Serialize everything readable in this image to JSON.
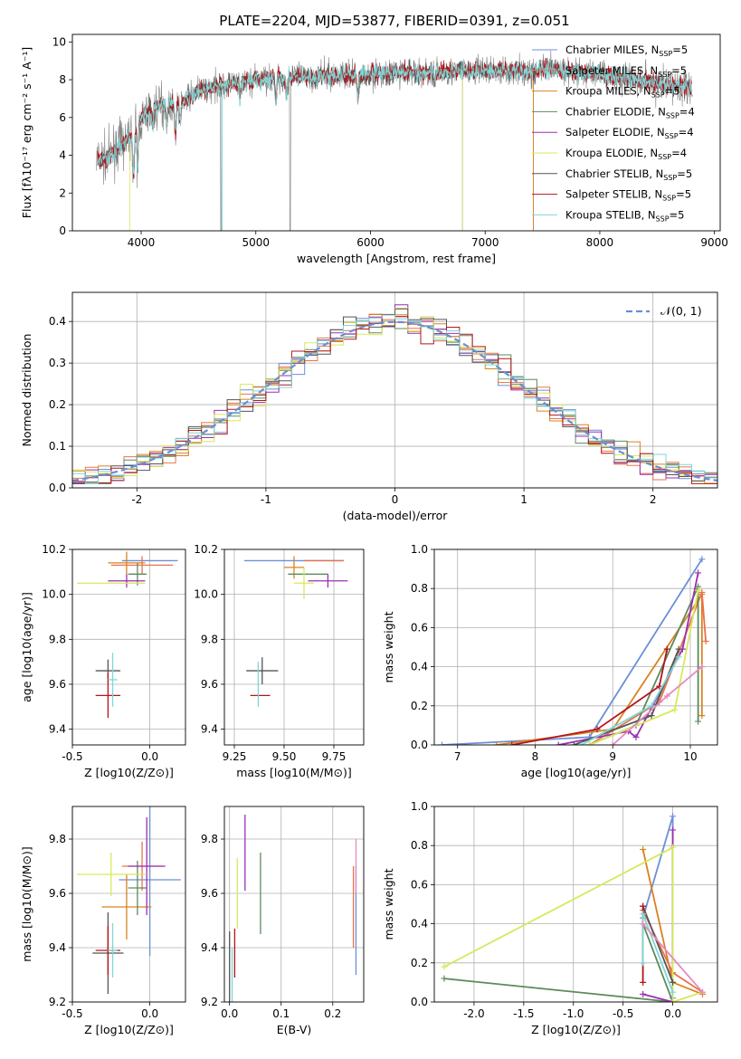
{
  "figure": {
    "title": "PLATE=2204, MJD=53877, FIBERID=0391, z=0.051"
  },
  "colors": {
    "Chabrier MILES": "#6c8fd6",
    "Salpeter MILES": "#e8734c",
    "Kroupa MILES": "#d9821f",
    "Chabrier ELODIE": "#5c8a5c",
    "Salpeter ELODIE": "#9a2fb5",
    "Kroupa ELODIE": "#d8e85a",
    "Chabrier STELIB": "#555555",
    "Salpeter STELIB": "#b3141c",
    "Kroupa STELIB": "#7fd6d6",
    "data": "#808080",
    "gaussian": "#6a8fd0",
    "pink": "#e58ac0"
  },
  "chart_data": [
    {
      "id": "spectrum",
      "type": "line",
      "xlabel": "wavelength [Angstrom, rest frame]",
      "ylabel": "Flux [fλ10⁻¹⁷ erg cm⁻² s⁻¹ A⁻¹]",
      "xlim": [
        3400,
        9050
      ],
      "ylim": [
        0,
        10.4
      ],
      "xticks": [
        4000,
        5000,
        6000,
        7000,
        8000,
        9000
      ],
      "yticks": [
        0,
        2,
        4,
        6,
        8,
        10
      ],
      "legend_position": "top-right",
      "legend": [
        {
          "imf": "Chabrier",
          "lib": "MILES",
          "n": "5"
        },
        {
          "imf": "Salpeter",
          "lib": "MILES",
          "n": "5"
        },
        {
          "imf": "Kroupa",
          "lib": "MILES",
          "n": "5"
        },
        {
          "imf": "Chabrier",
          "lib": "ELODIE",
          "n": "4"
        },
        {
          "imf": "Salpeter",
          "lib": "ELODIE",
          "n": "4"
        },
        {
          "imf": "Kroupa",
          "lib": "ELODIE",
          "n": "4"
        },
        {
          "imf": "Chabrier",
          "lib": "STELIB",
          "n": "5"
        },
        {
          "imf": "Salpeter",
          "lib": "STELIB",
          "n": "5"
        },
        {
          "imf": "Kroupa STELIB",
          "lib": "",
          "n": "5"
        }
      ],
      "continuum": {
        "x": [
          3620,
          3700,
          3800,
          3900,
          4000,
          4100,
          4200,
          4300,
          4400,
          4500,
          4700,
          5000,
          5300,
          5600,
          6000,
          6500,
          7000,
          7400,
          7500,
          8000,
          8500,
          8800
        ],
        "y": [
          3.8,
          3.8,
          4.5,
          4.9,
          5.9,
          6.5,
          6.7,
          6.6,
          7.0,
          7.4,
          7.7,
          8.0,
          8.1,
          8.2,
          8.3,
          8.4,
          8.5,
          8.4,
          8.6,
          8.3,
          7.8,
          7.6
        ]
      },
      "models_end": {
        "MILES": 7420,
        "ELODIE": 6800,
        "STELIB": 8800
      }
    },
    {
      "id": "residuals",
      "type": "histogram",
      "xlabel": "(data-model)/error",
      "ylabel": "Normed distribution",
      "xlim": [
        -2.5,
        2.5
      ],
      "ylim": [
        0,
        0.47
      ],
      "xticks": [
        -2,
        -1,
        0,
        1,
        2
      ],
      "yticks": [
        0,
        0.1,
        0.2,
        0.3,
        0.4
      ],
      "bin_width": 0.1,
      "grid": true,
      "reference_curve": {
        "label": "𝒩(0, 1)",
        "mean": 0,
        "sigma": 1,
        "style": "dashed"
      },
      "legend_position": "top-right"
    },
    {
      "id": "z-age",
      "type": "errorbar",
      "xlabel": "Z [log10(Z/Z⊙)]",
      "ylabel": "age  [log10(age/yr)]",
      "xlim": [
        -0.5,
        0.23
      ],
      "ylim": [
        9.33,
        10.2
      ],
      "xticks": [
        -0.5,
        0.0
      ],
      "yticks": [
        9.4,
        9.6,
        9.8,
        10.0,
        10.2
      ],
      "points": [
        {
          "s": "Chabrier MILES",
          "x": 0.0,
          "y": 10.15,
          "xerr": 0.18,
          "yerr": 0.0
        },
        {
          "s": "Salpeter MILES",
          "x": -0.05,
          "y": 10.13,
          "xerr": 0.2,
          "yerr": 0.04
        },
        {
          "s": "Kroupa MILES",
          "x": -0.15,
          "y": 10.14,
          "xerr": 0.12,
          "yerr": 0.05
        },
        {
          "s": "Chabrier ELODIE",
          "x": -0.08,
          "y": 10.09,
          "xerr": 0.06,
          "yerr": 0.05
        },
        {
          "s": "Salpeter ELODIE",
          "x": -0.15,
          "y": 10.06,
          "xerr": 0.12,
          "yerr": 0.03
        },
        {
          "s": "Kroupa ELODIE",
          "x": -0.25,
          "y": 10.05,
          "xerr": 0.22,
          "yerr": 0.0
        },
        {
          "s": "Chabrier STELIB",
          "x": -0.27,
          "y": 9.66,
          "xerr": 0.08,
          "yerr": 0.05
        },
        {
          "s": "Salpeter STELIB",
          "x": -0.27,
          "y": 9.55,
          "xerr": 0.08,
          "yerr": 0.1
        },
        {
          "s": "Kroupa STELIB",
          "x": -0.24,
          "y": 9.62,
          "xerr": 0.03,
          "yerr": 0.12
        }
      ]
    },
    {
      "id": "mass-age",
      "type": "errorbar",
      "xlabel": "mass [log10(M/M⊙)]",
      "ylabel": "",
      "xlim": [
        9.2,
        9.9
      ],
      "ylim": [
        9.33,
        10.2
      ],
      "xticks": [
        9.25,
        9.5,
        9.75
      ],
      "yticks": [
        9.4,
        9.6,
        9.8,
        10.0,
        10.2
      ],
      "points": [
        {
          "s": "Chabrier MILES",
          "x": 9.55,
          "y": 10.15,
          "xerr": 0.25,
          "yerr": 0.0
        },
        {
          "s": "Salpeter MILES",
          "x": 9.7,
          "y": 10.15,
          "xerr": 0.1,
          "yerr": 0.0
        },
        {
          "s": "Kroupa MILES",
          "x": 9.55,
          "y": 10.12,
          "xerr": 0.05,
          "yerr": 0.05
        },
        {
          "s": "Chabrier ELODIE",
          "x": 9.62,
          "y": 10.09,
          "xerr": 0.1,
          "yerr": 0.0
        },
        {
          "s": "Salpeter ELODIE",
          "x": 9.72,
          "y": 10.06,
          "xerr": 0.1,
          "yerr": 0.03
        },
        {
          "s": "Kroupa ELODIE",
          "x": 9.6,
          "y": 10.05,
          "xerr": 0.05,
          "yerr": 0.07
        },
        {
          "s": "Chabrier STELIB",
          "x": 9.39,
          "y": 9.66,
          "xerr": 0.08,
          "yerr": 0.06
        },
        {
          "s": "Salpeter STELIB",
          "x": 9.38,
          "y": 9.55,
          "xerr": 0.05,
          "yerr": 0.0
        },
        {
          "s": "Kroupa STELIB",
          "x": 9.37,
          "y": 9.6,
          "xerr": 0.0,
          "yerr": 0.1
        }
      ]
    },
    {
      "id": "age-weight",
      "type": "line",
      "xlabel": "age  [log10(age/yr)]",
      "ylabel": "mass weight",
      "xlim": [
        6.7,
        10.35
      ],
      "ylim": [
        0,
        1.0
      ],
      "xticks": [
        7,
        8,
        9,
        10
      ],
      "yticks": [
        0.0,
        0.2,
        0.4,
        0.6,
        0.8,
        1.0
      ],
      "grid": true,
      "series": [
        {
          "s": "Chabrier MILES",
          "x": [
            6.8,
            8.7,
            10.15
          ],
          "y": [
            0.0,
            0.04,
            0.95
          ]
        },
        {
          "s": "Kroupa MILES",
          "x": [
            7.5,
            9.0,
            10.15,
            10.15
          ],
          "y": [
            0.0,
            0.08,
            0.77,
            0.15
          ]
        },
        {
          "s": "Salpeter MILES",
          "x": [
            8.7,
            9.6,
            10.15,
            10.2
          ],
          "y": [
            0.0,
            0.22,
            0.78,
            0.53
          ]
        },
        {
          "s": "Chabrier ELODIE",
          "x": [
            8.7,
            9.3,
            10.1,
            10.1
          ],
          "y": [
            0.0,
            0.1,
            0.81,
            0.12
          ]
        },
        {
          "s": "Salpeter ELODIE",
          "x": [
            8.3,
            9.2,
            9.3,
            9.9,
            10.1
          ],
          "y": [
            0.0,
            0.07,
            0.04,
            0.49,
            0.88
          ]
        },
        {
          "s": "Kroupa ELODIE",
          "x": [
            8.7,
            9.8,
            10.1
          ],
          "y": [
            0.0,
            0.18,
            0.79
          ]
        },
        {
          "s": "Chabrier STELIB",
          "x": [
            8.5,
            9.5,
            9.85
          ],
          "y": [
            0.0,
            0.15,
            0.49
          ]
        },
        {
          "s": "Salpeter STELIB",
          "x": [
            7.7,
            8.8,
            9.6,
            9.7
          ],
          "y": [
            0.0,
            0.08,
            0.3,
            0.49
          ]
        },
        {
          "s": "Kroupa STELIB",
          "x": [
            8.6,
            9.5,
            9.85
          ],
          "y": [
            0.0,
            0.2,
            0.45
          ]
        },
        {
          "s": "pink",
          "x": [
            9.0,
            9.7,
            10.15
          ],
          "y": [
            0.0,
            0.25,
            0.4
          ]
        }
      ]
    },
    {
      "id": "z-mass",
      "type": "errorbar",
      "xlabel": "Z [log10(Z/Z⊙)]",
      "ylabel": "mass [log10(M/M⊙)]",
      "xlim": [
        -0.5,
        0.23
      ],
      "ylim": [
        9.2,
        9.92
      ],
      "xticks": [
        -0.5,
        0.0
      ],
      "yticks": [
        9.2,
        9.4,
        9.6,
        9.8
      ],
      "points": [
        {
          "s": "Chabrier MILES",
          "x": 0.0,
          "y": 9.65,
          "xerr": 0.2,
          "yerr": 0.28
        },
        {
          "s": "Salpeter MILES",
          "x": -0.05,
          "y": 9.7,
          "xerr": 0.13,
          "yerr": 0.09
        },
        {
          "s": "Kroupa MILES",
          "x": -0.15,
          "y": 9.55,
          "xerr": 0.16,
          "yerr": 0.12
        },
        {
          "s": "Chabrier ELODIE",
          "x": -0.08,
          "y": 9.62,
          "xerr": 0.06,
          "yerr": 0.1
        },
        {
          "s": "Salpeter ELODIE",
          "x": -0.02,
          "y": 9.7,
          "xerr": 0.12,
          "yerr": 0.18
        },
        {
          "s": "Kroupa ELODIE",
          "x": -0.25,
          "y": 9.67,
          "xerr": 0.22,
          "yerr": 0.08
        },
        {
          "s": "Chabrier STELIB",
          "x": -0.27,
          "y": 9.38,
          "xerr": 0.1,
          "yerr": 0.15
        },
        {
          "s": "Salpeter STELIB",
          "x": -0.27,
          "y": 9.39,
          "xerr": 0.08,
          "yerr": 0.09
        },
        {
          "s": "Kroupa STELIB",
          "x": -0.24,
          "y": 9.39,
          "xerr": 0.03,
          "yerr": 0.1
        }
      ]
    },
    {
      "id": "ebv-mass",
      "type": "errorbar",
      "xlabel": "E(B-V)",
      "ylabel": "",
      "xlim": [
        -0.01,
        0.26
      ],
      "ylim": [
        9.2,
        9.92
      ],
      "xticks": [
        0.0,
        0.1,
        0.2
      ],
      "yticks": [
        9.2,
        9.4,
        9.6,
        9.8
      ],
      "points": [
        {
          "s": "Chabrier MILES",
          "x": 0.245,
          "y": 9.5,
          "xerr": 0,
          "yerr": 0.2
        },
        {
          "s": "Salpeter MILES",
          "x": 0.24,
          "y": 9.55,
          "xerr": 0,
          "yerr": 0.15
        },
        {
          "s": "pink",
          "x": 0.245,
          "y": 9.7,
          "xerr": 0,
          "yerr": 0.1
        },
        {
          "s": "Chabrier ELODIE",
          "x": 0.06,
          "y": 9.6,
          "xerr": 0,
          "yerr": 0.15
        },
        {
          "s": "Salpeter ELODIE",
          "x": 0.03,
          "y": 9.75,
          "xerr": 0,
          "yerr": 0.14
        },
        {
          "s": "Kroupa ELODIE",
          "x": 0.015,
          "y": 9.6,
          "xerr": 0,
          "yerr": 0.13
        },
        {
          "s": "Chabrier STELIB",
          "x": 0.0,
          "y": 9.33,
          "xerr": 0,
          "yerr": 0.13
        },
        {
          "s": "Salpeter STELIB",
          "x": 0.01,
          "y": 9.38,
          "xerr": 0,
          "yerr": 0.09
        },
        {
          "s": "Kroupa STELIB",
          "x": 0.005,
          "y": 9.3,
          "xerr": 0,
          "yerr": 0.1
        }
      ]
    },
    {
      "id": "z-weight",
      "type": "line",
      "xlabel": "Z [log10(Z/Z⊙)]",
      "ylabel": "mass weight",
      "xlim": [
        -2.4,
        0.45
      ],
      "ylim": [
        0,
        1.0
      ],
      "xticks": [
        -2.0,
        -1.5,
        -1.0,
        -0.5,
        0.0
      ],
      "yticks": [
        0.0,
        0.2,
        0.4,
        0.6,
        0.8,
        1.0
      ],
      "grid": true,
      "series": [
        {
          "s": "Chabrier MILES",
          "x": [
            -0.3,
            0.0,
            0.0
          ],
          "y": [
            0.43,
            0.95,
            0.02
          ]
        },
        {
          "s": "Kroupa MILES",
          "x": [
            -0.3,
            0.0,
            0.3
          ],
          "y": [
            0.78,
            0.1,
            0.04
          ]
        },
        {
          "s": "Salpeter MILES",
          "x": [
            -0.3,
            0.0,
            0.3
          ],
          "y": [
            0.47,
            0.15,
            0.05
          ]
        },
        {
          "s": "Chabrier ELODIE",
          "x": [
            -2.3,
            0.0,
            -0.3
          ],
          "y": [
            0.12,
            0.0,
            0.4
          ]
        },
        {
          "s": "Salpeter ELODIE",
          "x": [
            -0.3,
            0.0,
            0.0
          ],
          "y": [
            0.04,
            0.0,
            0.88
          ]
        },
        {
          "s": "Kroupa ELODIE",
          "x": [
            -2.3,
            0.0,
            0.0,
            0.3
          ],
          "y": [
            0.18,
            0.79,
            0.0,
            0.05
          ]
        },
        {
          "s": "Chabrier STELIB",
          "x": [
            -0.3,
            0.0
          ],
          "y": [
            0.49,
            0.1
          ]
        },
        {
          "s": "Salpeter STELIB",
          "x": [
            -0.3,
            -0.3
          ],
          "y": [
            0.1,
            0.49
          ]
        },
        {
          "s": "Kroupa STELIB",
          "x": [
            -0.3,
            -0.3,
            0.0
          ],
          "y": [
            0.2,
            0.45,
            0.05
          ]
        },
        {
          "s": "pink",
          "x": [
            -0.3,
            0.3
          ],
          "y": [
            0.4,
            0.05
          ]
        }
      ]
    }
  ]
}
